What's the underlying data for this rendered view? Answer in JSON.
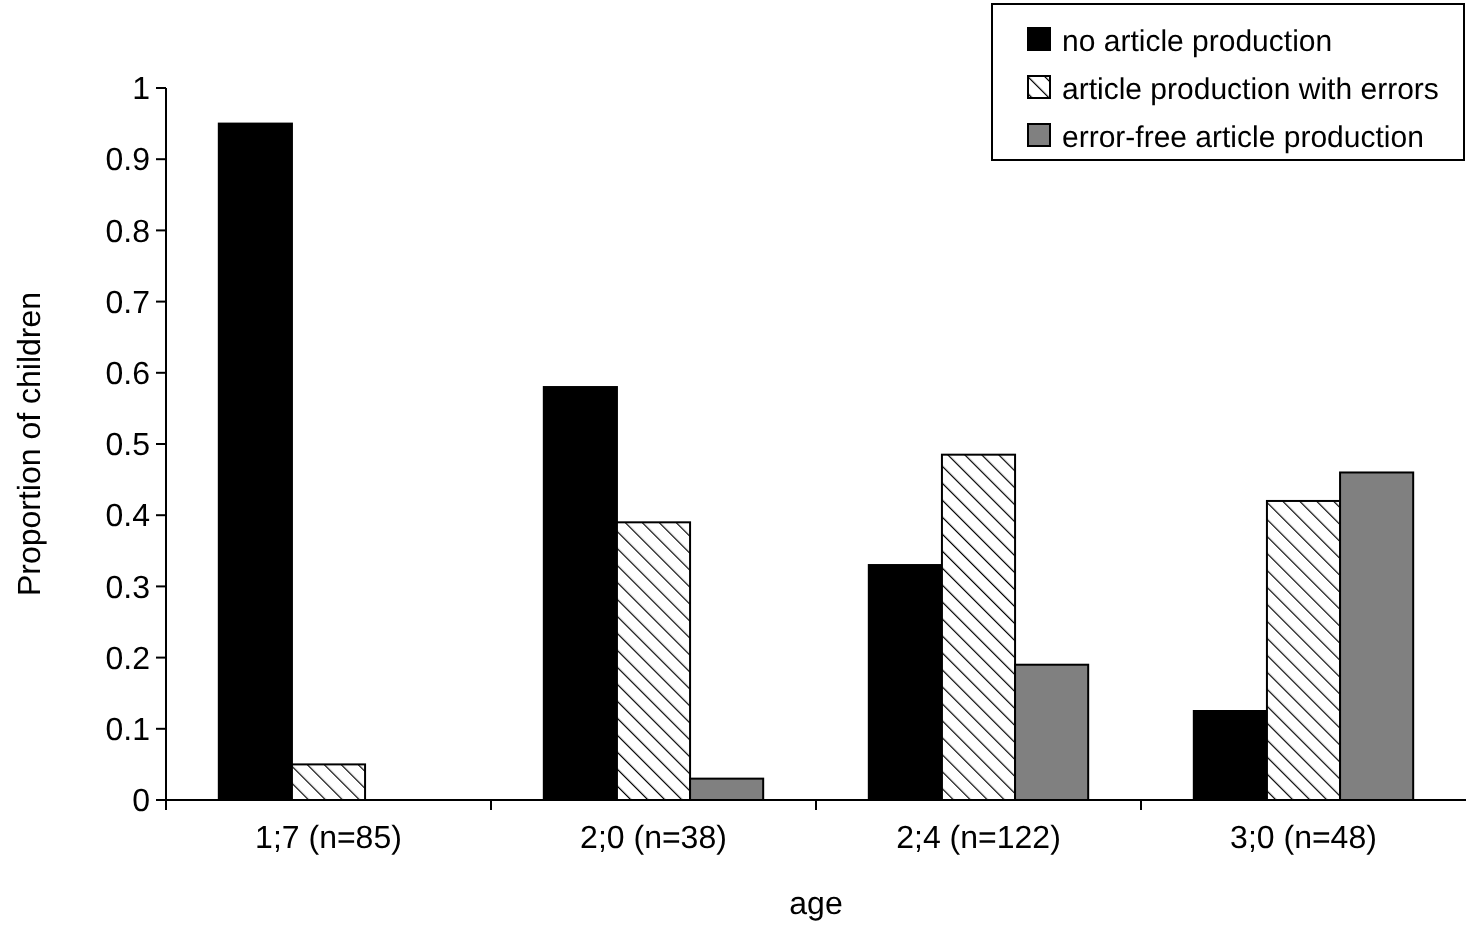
{
  "chart_data": {
    "type": "bar",
    "xlabel": "age",
    "ylabel": "Proportion of children",
    "categories": [
      "1;7 (n=85)",
      "2;0 (n=38)",
      "2;4 (n=122)",
      "3;0 (n=48)"
    ],
    "series": [
      {
        "name": "no article production",
        "color": "#000000",
        "values": [
          0.95,
          0.58,
          0.33,
          0.125
        ]
      },
      {
        "name": "article production with errors",
        "color": "#000000",
        "values": [
          0.05,
          0.39,
          0.485,
          0.42
        ]
      },
      {
        "name": "error-free article production",
        "color": "#808080",
        "values": [
          0,
          0.03,
          0.19,
          0.46
        ]
      }
    ],
    "ylim": [
      0,
      1
    ],
    "yticks": [
      0,
      0.1,
      0.2,
      0.3,
      0.4,
      0.5,
      0.6,
      0.7,
      0.8,
      0.9,
      1
    ],
    "grid": false,
    "legend": "top right"
  }
}
